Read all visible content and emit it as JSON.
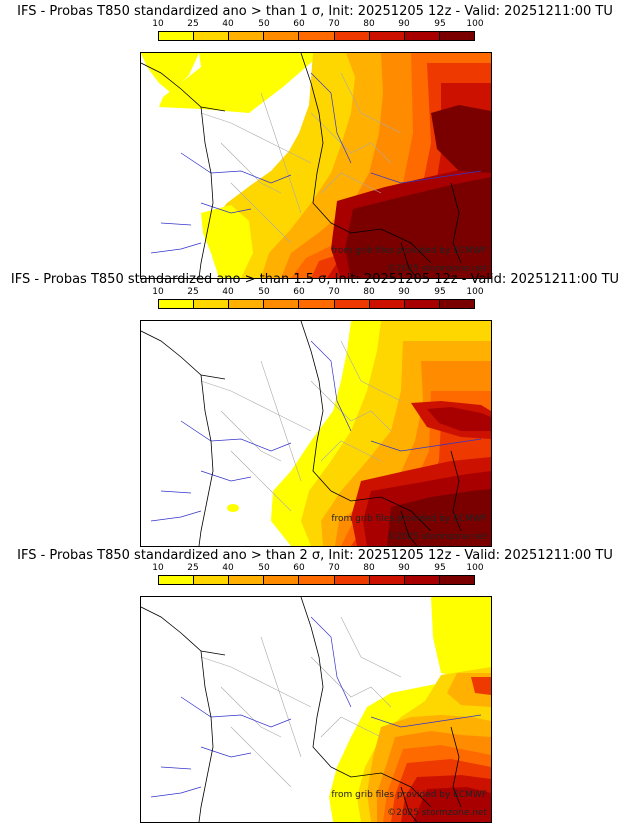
{
  "colorbar": {
    "ticks": [
      "10",
      "25",
      "40",
      "50",
      "60",
      "70",
      "80",
      "90",
      "95",
      "100"
    ],
    "colors": [
      "#ffff00",
      "#ffd700",
      "#ffb000",
      "#ff8c00",
      "#ff6a00",
      "#ee3a00",
      "#cc1100",
      "#a80000",
      "#7a0000"
    ]
  },
  "credits": {
    "source": "from grib files provided by ECMWF",
    "copyright": "©2025 stormzone.net"
  },
  "panels": [
    {
      "title": "IFS - Probas T850  standardized ano > than 1 σ, Init: 20251205 12z - Valid: 20251211:00 TU",
      "threshold": "1 σ"
    },
    {
      "title": "IFS - Probas T850  standardized ano > than 1.5 σ, Init: 20251205 12z - Valid: 20251211:00 TU",
      "threshold": "1.5 σ"
    },
    {
      "title": "IFS - Probas T850  standardized ano > than 2 σ, Init: 20251205 12z - Valid: 20251211:00 TU",
      "threshold": "2 σ"
    }
  ]
}
